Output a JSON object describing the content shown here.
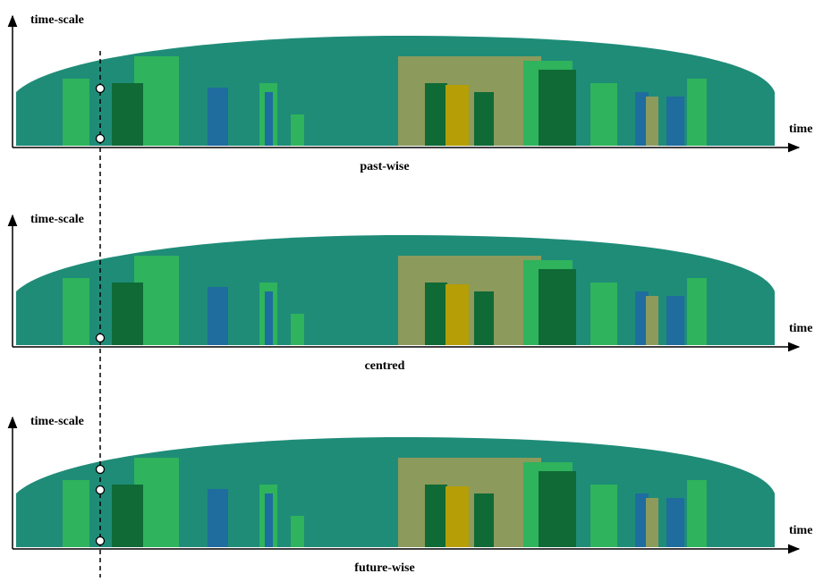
{
  "panels": [
    {
      "y_axis": "time-scale",
      "x_axis": "time",
      "label": "past-wise"
    },
    {
      "y_axis": "time-scale",
      "x_axis": "time",
      "label": "centred"
    },
    {
      "y_axis": "time-scale",
      "x_axis": "time",
      "label": "future-wise"
    }
  ]
}
